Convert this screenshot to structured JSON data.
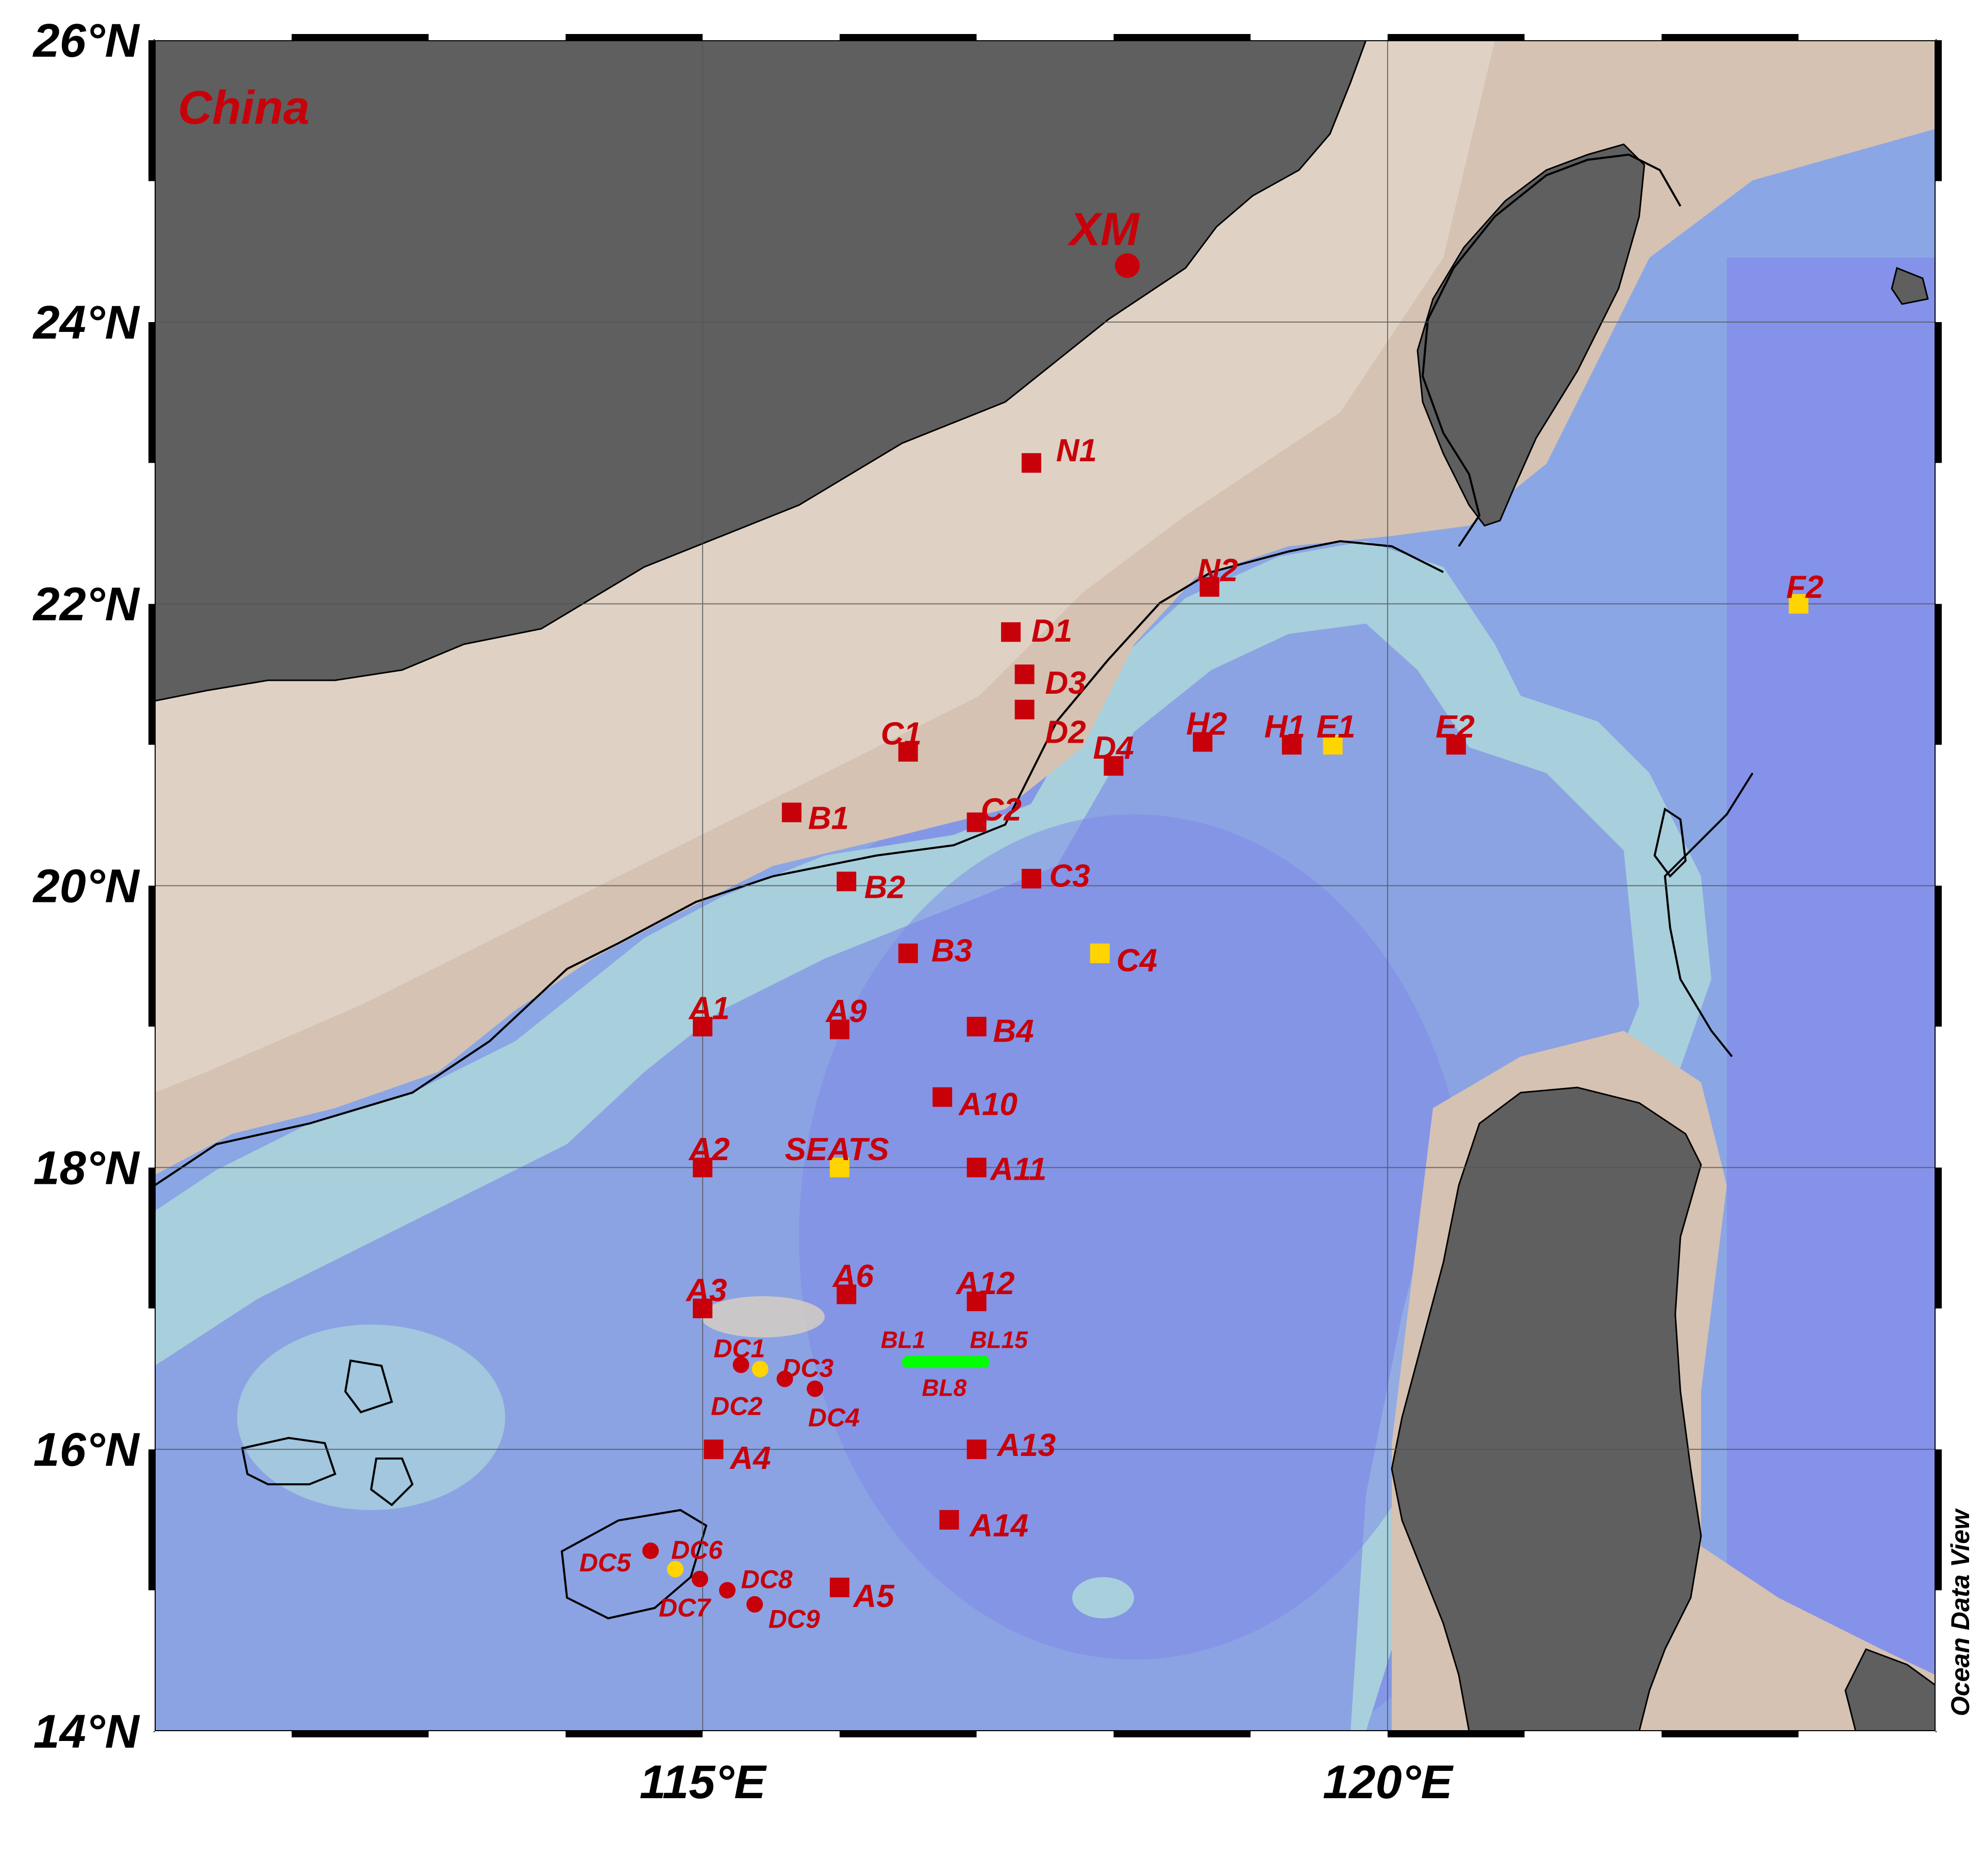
{
  "colors": {
    "land": "#5f5f5f",
    "shelf": "#d5c2b2",
    "shelf_light": "#dfd2c4",
    "slope": "#a9cfdc",
    "basin": "#8ba6e4",
    "deep": "#7f8aea",
    "coastline": "#000000",
    "station_red": "#c8000a",
    "station_yellow": "#ffd400",
    "bl_green": "#00ff00",
    "grid": "#555555"
  },
  "map": {
    "lon_range": [
      111,
      124
    ],
    "lat_range": [
      14,
      26
    ],
    "lat_ticks": [
      {
        "lat": 26,
        "label": "26°N"
      },
      {
        "lat": 24,
        "label": "24°N"
      },
      {
        "lat": 22,
        "label": "22°N"
      },
      {
        "lat": 20,
        "label": "20°N"
      },
      {
        "lat": 18,
        "label": "18°N"
      },
      {
        "lat": 16,
        "label": "16°N"
      },
      {
        "lat": 14,
        "label": "14°N"
      }
    ],
    "lon_ticks": [
      {
        "lon": 115,
        "label": "115°E"
      },
      {
        "lon": 120,
        "label": "120°E"
      }
    ],
    "gridlines_lon": [
      115,
      120
    ],
    "gridlines_lat": [
      16,
      18,
      20,
      22,
      24
    ]
  },
  "region_label": "China",
  "credit": "Ocean Data View",
  "city": {
    "name": "XM",
    "lon": 118.1,
    "lat": 24.4
  },
  "stations": [
    {
      "name": "N1",
      "lon": 117.4,
      "lat": 23.0,
      "color": "red",
      "dx": 0.18,
      "dy": 0.1
    },
    {
      "name": "N2",
      "lon": 118.7,
      "lat": 22.12,
      "color": "red",
      "dx": -0.09,
      "dy": 0.13
    },
    {
      "name": "F2",
      "lon": 123.0,
      "lat": 22.0,
      "color": "yellow",
      "dx": -0.09,
      "dy": 0.13
    },
    {
      "name": "D1",
      "lon": 117.25,
      "lat": 21.8,
      "color": "red",
      "dx": 0.15,
      "dy": 0.02
    },
    {
      "name": "D3",
      "lon": 117.35,
      "lat": 21.5,
      "color": "red",
      "dx": 0.15,
      "dy": -0.05
    },
    {
      "name": "D2",
      "lon": 117.35,
      "lat": 21.25,
      "color": "red",
      "dx": 0.15,
      "dy": -0.15
    },
    {
      "name": "C1",
      "lon": 116.5,
      "lat": 20.95,
      "color": "red",
      "dx": -0.2,
      "dy": 0.14
    },
    {
      "name": "D4",
      "lon": 118.0,
      "lat": 20.85,
      "color": "red",
      "dx": -0.15,
      "dy": 0.14
    },
    {
      "name": "H2",
      "lon": 118.65,
      "lat": 21.02,
      "color": "red",
      "dx": -0.12,
      "dy": 0.14
    },
    {
      "name": "H1",
      "lon": 119.3,
      "lat": 21.0,
      "color": "red",
      "dx": -0.2,
      "dy": 0.14
    },
    {
      "name": "E1",
      "lon": 119.6,
      "lat": 21.0,
      "color": "yellow",
      "dx": -0.12,
      "dy": 0.14
    },
    {
      "name": "E2",
      "lon": 120.5,
      "lat": 21.0,
      "color": "red",
      "dx": -0.15,
      "dy": 0.14
    },
    {
      "name": "B1",
      "lon": 115.65,
      "lat": 20.52,
      "color": "red",
      "dx": 0.12,
      "dy": -0.03
    },
    {
      "name": "C2",
      "lon": 117.0,
      "lat": 20.45,
      "color": "red",
      "dx": 0.03,
      "dy": 0.1
    },
    {
      "name": "B2",
      "lon": 116.05,
      "lat": 20.03,
      "color": "red",
      "dx": 0.13,
      "dy": -0.03
    },
    {
      "name": "C3",
      "lon": 117.4,
      "lat": 20.05,
      "color": "red",
      "dx": 0.13,
      "dy": 0.03
    },
    {
      "name": "B3",
      "lon": 116.5,
      "lat": 19.52,
      "color": "red",
      "dx": 0.17,
      "dy": 0.03
    },
    {
      "name": "C4",
      "lon": 117.9,
      "lat": 19.52,
      "color": "yellow",
      "dx": 0.12,
      "dy": -0.04
    },
    {
      "name": "A1",
      "lon": 115.0,
      "lat": 19.0,
      "color": "red",
      "dx": -0.1,
      "dy": 0.14
    },
    {
      "name": "A9",
      "lon": 116.0,
      "lat": 18.98,
      "color": "red",
      "dx": -0.1,
      "dy": 0.14
    },
    {
      "name": "B4",
      "lon": 117.0,
      "lat": 19.0,
      "color": "red",
      "dx": 0.12,
      "dy": -0.02
    },
    {
      "name": "A10",
      "lon": 116.75,
      "lat": 18.5,
      "color": "red",
      "dx": 0.12,
      "dy": -0.04
    },
    {
      "name": "A2",
      "lon": 115.0,
      "lat": 18.0,
      "color": "red",
      "dx": -0.1,
      "dy": 0.14
    },
    {
      "name": "SEATS",
      "lon": 116.0,
      "lat": 18.0,
      "color": "yellow",
      "dx": -0.4,
      "dy": 0.14
    },
    {
      "name": "A11",
      "lon": 117.0,
      "lat": 18.0,
      "color": "red",
      "dx": 0.1,
      "dy": 0.0
    },
    {
      "name": "A3",
      "lon": 115.0,
      "lat": 17.0,
      "color": "red",
      "dx": -0.12,
      "dy": 0.14
    },
    {
      "name": "A6",
      "lon": 116.05,
      "lat": 17.1,
      "color": "red",
      "dx": -0.1,
      "dy": 0.14
    },
    {
      "name": "A12",
      "lon": 117.0,
      "lat": 17.05,
      "color": "red",
      "dx": -0.15,
      "dy": 0.14
    },
    {
      "name": "A4",
      "lon": 115.08,
      "lat": 16.0,
      "color": "red",
      "dx": 0.12,
      "dy": -0.05
    },
    {
      "name": "A13",
      "lon": 117.0,
      "lat": 16.0,
      "color": "red",
      "dx": 0.15,
      "dy": 0.04
    },
    {
      "name": "A14",
      "lon": 116.8,
      "lat": 15.5,
      "color": "red",
      "dx": 0.15,
      "dy": -0.03
    },
    {
      "name": "A5",
      "lon": 116.0,
      "lat": 15.02,
      "color": "red",
      "dx": 0.1,
      "dy": -0.05
    }
  ],
  "dc_stations": [
    {
      "name": "DC1",
      "lon": 115.28,
      "lat": 16.6,
      "color": "red",
      "dx": -0.2,
      "dy": 0.12
    },
    {
      "name": "DC2",
      "lon": 115.42,
      "lat": 16.57,
      "color": "yellow",
      "dx": -0.36,
      "dy": -0.26
    },
    {
      "name": "DC3",
      "lon": 115.6,
      "lat": 16.5,
      "color": "red",
      "dx": -0.02,
      "dy": 0.08
    },
    {
      "name": "DC4",
      "lon": 115.82,
      "lat": 16.43,
      "color": "red",
      "dx": -0.05,
      "dy": -0.2
    },
    {
      "name": "DC5",
      "lon": 114.62,
      "lat": 15.28,
      "color": "red",
      "dx": -0.52,
      "dy": -0.08
    },
    {
      "name": "DC6",
      "lon": 114.8,
      "lat": 15.15,
      "color": "yellow",
      "dx": -0.03,
      "dy": 0.14
    },
    {
      "name": "DC7",
      "lon": 114.98,
      "lat": 15.08,
      "color": "red",
      "dx": -0.3,
      "dy": -0.2
    },
    {
      "name": "DC8",
      "lon": 115.18,
      "lat": 15.0,
      "color": "red",
      "dx": 0.1,
      "dy": 0.08
    },
    {
      "name": "DC9",
      "lon": 115.38,
      "lat": 14.9,
      "color": "red",
      "dx": 0.1,
      "dy": -0.1
    }
  ],
  "bl_labels": [
    {
      "name": "BL1",
      "lon": 116.3,
      "lat": 16.72
    },
    {
      "name": "BL15",
      "lon": 116.95,
      "lat": 16.72
    },
    {
      "name": "BL8",
      "lon": 116.6,
      "lat": 16.38
    }
  ],
  "bl_track": {
    "lon_start": 116.5,
    "lon_end": 117.05,
    "lat": 16.62,
    "count": 15
  }
}
